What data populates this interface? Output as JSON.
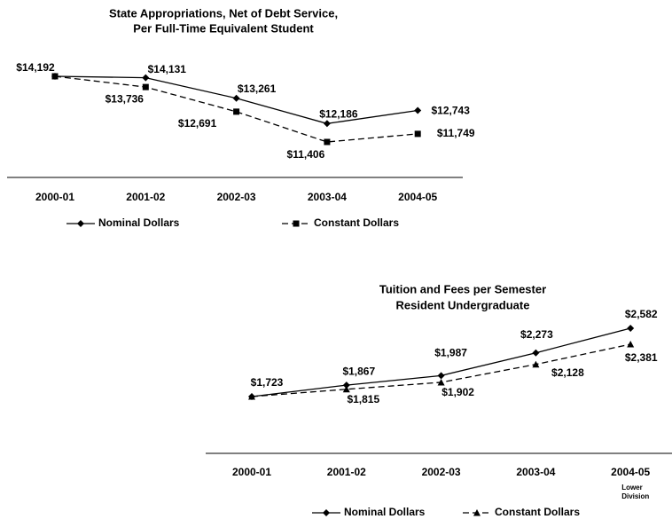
{
  "chart_data": [
    {
      "type": "line",
      "title": [
        "State Appropriations, Net of Debt Service,",
        "Per Full-Time Equivalent Student"
      ],
      "categories": [
        "2000-01",
        "2001-02",
        "2002-03",
        "2003-04",
        "2004-05"
      ],
      "series": [
        {
          "name": "Nominal Dollars",
          "color": "#000000",
          "marker": "diamond",
          "dashed": false,
          "values": [
            14192,
            14131,
            13261,
            12186,
            12743
          ],
          "value_labels": [
            "$14,192",
            "$14,131",
            "$13,261",
            "$12,186",
            "$12,743"
          ]
        },
        {
          "name": "Constant Dollars",
          "color": "#000000",
          "marker": "square",
          "dashed": true,
          "values": [
            14192,
            13736,
            12691,
            11406,
            11749
          ],
          "value_labels": [
            null,
            "$13,736",
            "$12,691",
            "$11,406",
            "$11,749"
          ]
        }
      ]
    },
    {
      "type": "line",
      "title": [
        "Tuition and Fees per Semester",
        "Resident Undergraduate"
      ],
      "categories": [
        "2000-01",
        "2001-02",
        "2002-03",
        "2003-04",
        "2004-05"
      ],
      "category_note": [
        "Lower",
        "Division"
      ],
      "series": [
        {
          "name": "Nominal Dollars",
          "color": "#000000",
          "marker": "diamond",
          "dashed": false,
          "values": [
            1723,
            1867,
            1987,
            2273,
            2582
          ],
          "value_labels": [
            "$1,723",
            "$1,867",
            "$1,987",
            "$2,273",
            "$2,582"
          ]
        },
        {
          "name": "Constant Dollars",
          "color": "#000000",
          "marker": "triangle",
          "dashed": true,
          "values": [
            1723,
            1815,
            1902,
            2128,
            2381
          ],
          "value_labels": [
            null,
            "$1,815",
            "$1,902",
            "$2,128",
            "$2,381"
          ]
        }
      ]
    }
  ]
}
